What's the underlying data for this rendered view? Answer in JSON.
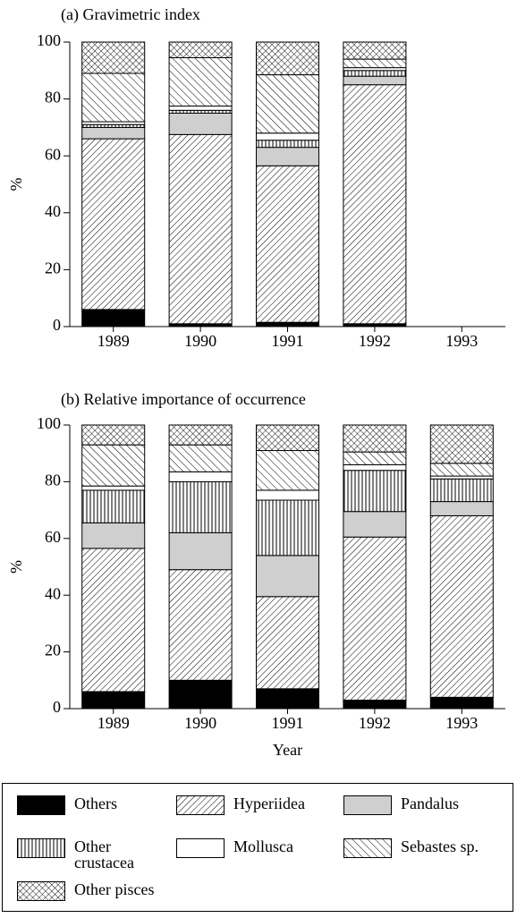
{
  "chart_data": [
    {
      "type": "stacked-bar",
      "title": "(a) Gravimetric index",
      "y_label": "%",
      "categories": [
        "1989",
        "1990",
        "1991",
        "1992",
        "1993"
      ],
      "ylim": [
        0,
        100
      ],
      "yticks": [
        0,
        20,
        40,
        60,
        80,
        100
      ],
      "series": [
        {
          "name": "Others",
          "pattern": "solid",
          "values": [
            6,
            1,
            1.5,
            1,
            null
          ]
        },
        {
          "name": "Hyperiidea",
          "pattern": "back-diagonal",
          "values": [
            60,
            66.5,
            55,
            84,
            null
          ]
        },
        {
          "name": "Pandalus",
          "pattern": "gray",
          "values": [
            4,
            7.5,
            6.5,
            3,
            null
          ]
        },
        {
          "name": "Other crustacea",
          "pattern": "vertical",
          "values": [
            1,
            1,
            2.5,
            2,
            null
          ]
        },
        {
          "name": "Mollusca",
          "pattern": "white",
          "values": [
            1,
            1.5,
            2.5,
            1,
            null
          ]
        },
        {
          "name": "Sebastes sp.",
          "pattern": "diagonal",
          "values": [
            17,
            17,
            20.5,
            3,
            null
          ]
        },
        {
          "name": "Other pisces",
          "pattern": "crosshatch",
          "values": [
            11,
            5.5,
            11.5,
            6,
            null
          ]
        }
      ]
    },
    {
      "type": "stacked-bar",
      "title": "(b) Relative importance of occurrence",
      "y_label": "%",
      "x_label": "Year",
      "categories": [
        "1989",
        "1990",
        "1991",
        "1992",
        "1993"
      ],
      "ylim": [
        0,
        100
      ],
      "yticks": [
        0,
        20,
        40,
        60,
        80,
        100
      ],
      "series": [
        {
          "name": "Others",
          "pattern": "solid",
          "values": [
            6,
            10,
            7,
            3,
            4
          ]
        },
        {
          "name": "Hyperiidea",
          "pattern": "back-diagonal",
          "values": [
            50.5,
            39,
            32.5,
            57.5,
            64
          ]
        },
        {
          "name": "Pandalus",
          "pattern": "gray",
          "values": [
            9,
            13,
            14.5,
            9,
            5
          ]
        },
        {
          "name": "Other crustacea",
          "pattern": "vertical",
          "values": [
            11.5,
            18,
            19.5,
            14.5,
            8
          ]
        },
        {
          "name": "Mollusca",
          "pattern": "white",
          "values": [
            1.5,
            3.5,
            3.5,
            2,
            1
          ]
        },
        {
          "name": "Sebastes sp.",
          "pattern": "diagonal",
          "values": [
            14.5,
            9.5,
            14,
            4.5,
            4.5
          ]
        },
        {
          "name": "Other pisces",
          "pattern": "crosshatch",
          "values": [
            7,
            7,
            9,
            9.5,
            13.5
          ]
        }
      ]
    }
  ]
}
